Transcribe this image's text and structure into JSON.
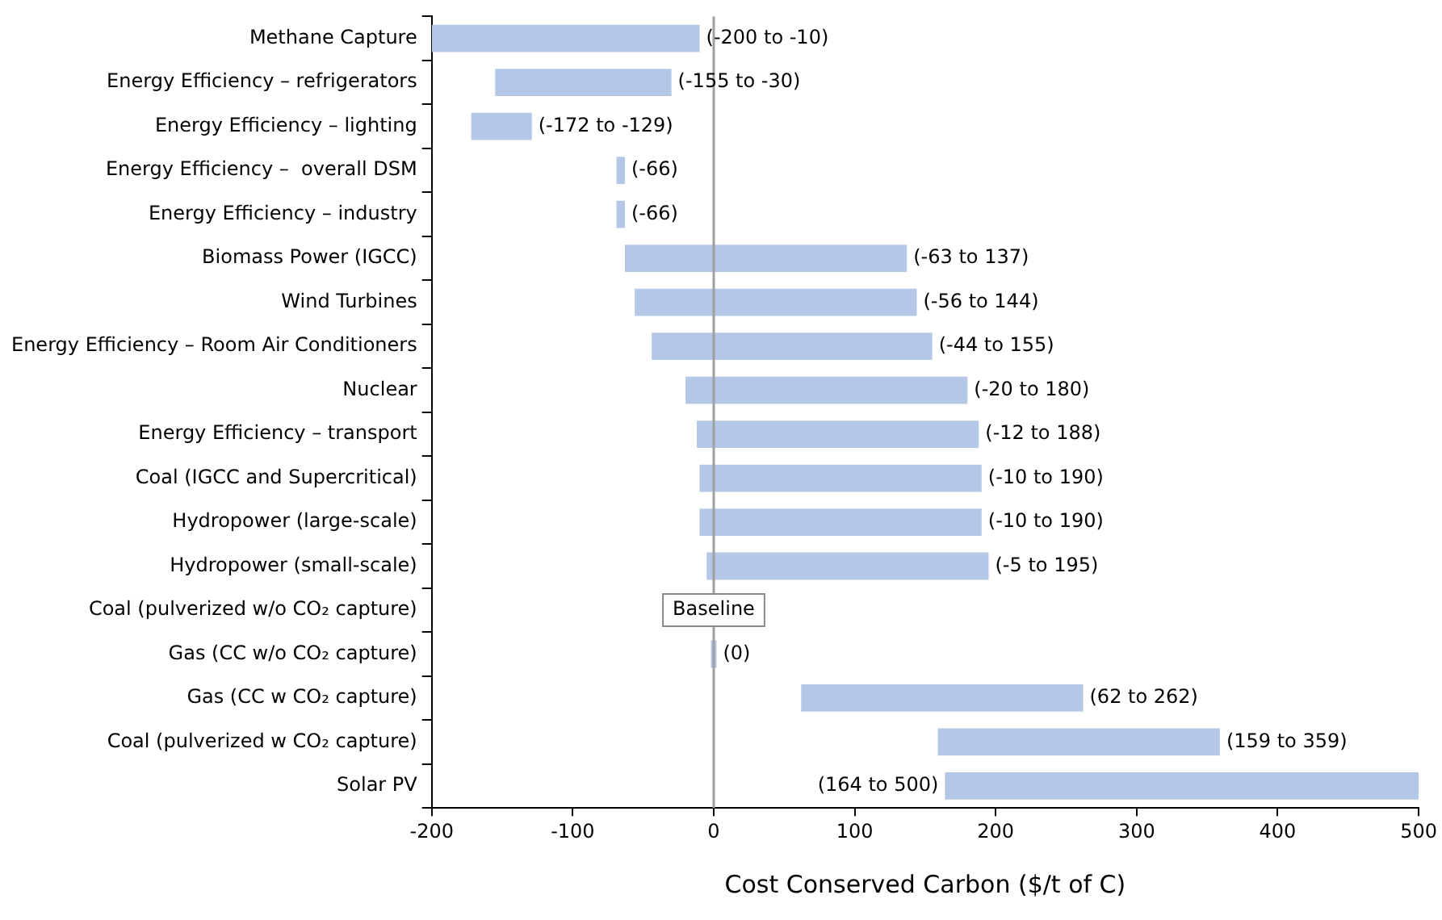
{
  "chart_data": {
    "type": "bar",
    "orientation": "horizontal",
    "xlabel": "Cost Conserved Carbon ($/t of C)",
    "categories": [
      "Methane Capture",
      "Energy Efficiency – refrigerators",
      "Energy Efficiency – lighting",
      "Energy Efficiency –  overall DSM",
      "Energy Efficiency – industry",
      "Biomass Power (IGCC)",
      "Wind Turbines",
      "Energy Efficiency – Room Air Conditioners",
      "Nuclear",
      "Energy Efficiency – transport",
      "Coal (IGCC and Supercritical)",
      "Hydropower (large-scale)",
      "Hydropower (small-scale)",
      "Coal (pulverized w/o CO₂ capture)",
      "Gas (CC w/o CO₂ capture)",
      "Gas (CC w CO₂ capture)",
      "Coal (pulverized w CO₂ capture)",
      "Solar PV"
    ],
    "base": [
      -200,
      -155,
      -172,
      -69,
      -69,
      -63,
      -56,
      -44,
      -20,
      -12,
      -10,
      -10,
      -5,
      null,
      -2,
      62,
      159,
      164
    ],
    "values": [
      190,
      125,
      43,
      6,
      6,
      200,
      200,
      199,
      200,
      200,
      200,
      200,
      200,
      null,
      4,
      200,
      200,
      336
    ],
    "value_labels": [
      "(-200 to -10)",
      "(-155 to -30)",
      "(-172 to -129)",
      null,
      null,
      "(-63 to 137)",
      "(-56 to 144)",
      "(-44 to 155)",
      "(-20 to 180)",
      "(-12 to 188)",
      "(-10 to 190)",
      "(-10 to 190)",
      "(-5 to 195)",
      null,
      null,
      "(62 to 262)",
      "(159 to 359)",
      "(164 to 500)"
    ],
    "color": "#b4c7e7",
    "xlim": [
      -200,
      500
    ],
    "xticks": [
      -200,
      -100,
      0,
      100,
      200,
      300,
      400,
      500
    ],
    "grid": false,
    "legend": false,
    "ref_lines": [
      {
        "axis": "x",
        "value": 0,
        "color": "#a0a0a0"
      }
    ],
    "annotations": [
      "(-66)",
      "(-66)",
      "Baseline",
      "(0)"
    ]
  }
}
